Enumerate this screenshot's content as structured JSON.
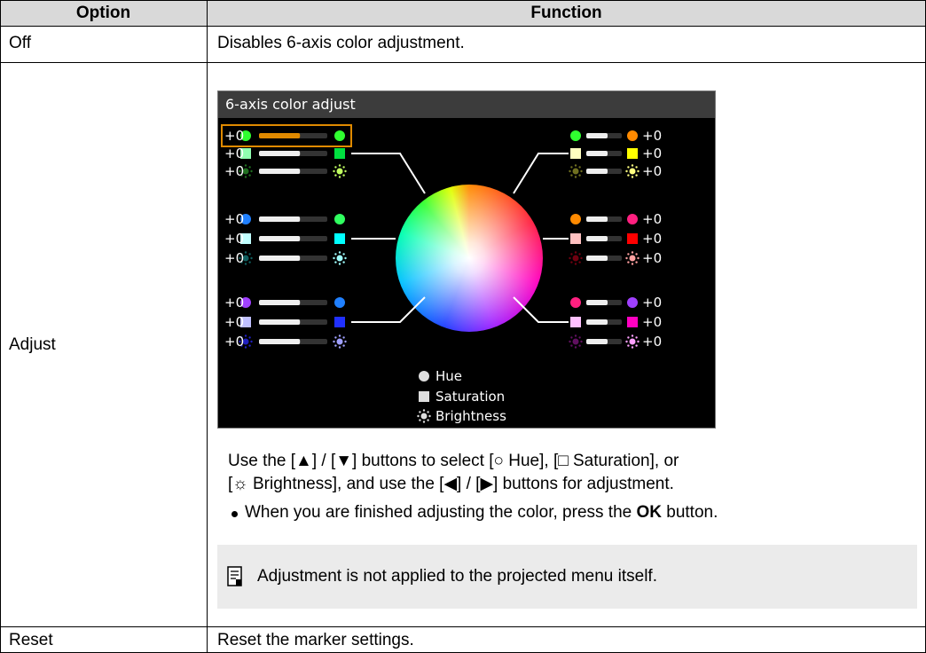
{
  "table": {
    "headers": [
      "Option",
      "Function"
    ],
    "rows": [
      {
        "option": "Off",
        "function": "Disables 6-axis color adjustment."
      },
      {
        "option": "Adjust",
        "screen": {
          "title": "6-axis color adjust",
          "left_values": [
            "+0",
            "+0",
            "+0",
            "+0",
            "+0",
            "+0",
            "+0",
            "+0",
            "+0"
          ],
          "right_values": [
            "+0",
            "+0",
            "+0",
            "+0",
            "+0",
            "+0",
            "+0",
            "+0",
            "+0"
          ],
          "legend": [
            "Hue",
            "Saturation",
            "Brightness"
          ]
        },
        "instructions": [
          "Use the [▲] / [▼] buttons to select [○ Hue], [□ Saturation], or",
          "[☼ Brightness], and use the [◀] / [▶] buttons for adjustment."
        ],
        "bullet": {
          "before": "When you are finished adjusting the color, press the ",
          "bold": "OK",
          "after": " button."
        },
        "note": "Adjustment is not applied to the projected menu itself."
      },
      {
        "option": "Reset",
        "function": "Reset the marker settings."
      }
    ]
  }
}
